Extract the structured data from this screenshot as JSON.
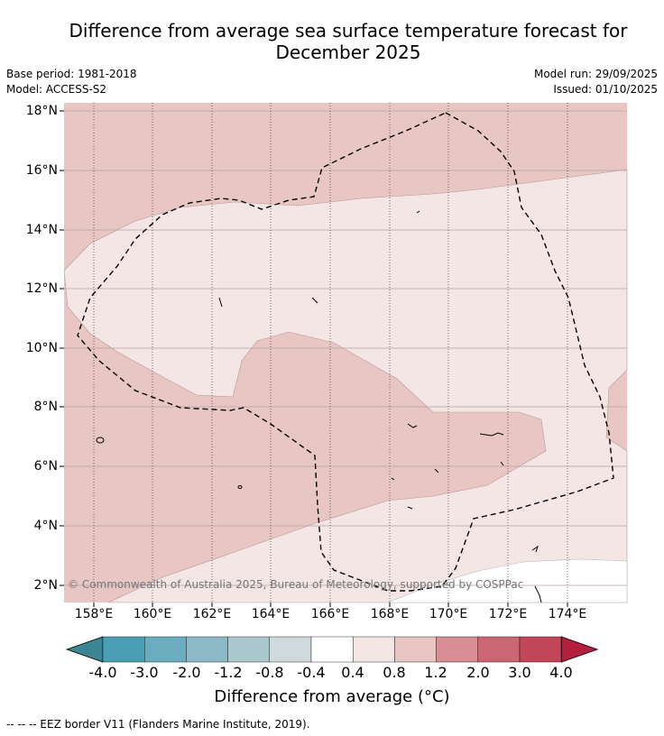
{
  "title_line1": "Difference from average sea surface temperature forecast for",
  "title_line2": "December 2025",
  "meta": {
    "base_period": "Base period: 1981-2018",
    "model": "Model: ACCESS-S2",
    "model_run": "Model run: 29/09/2025",
    "issued": "Issued: 01/10/2025"
  },
  "map": {
    "lat_labels": [
      "18°N",
      "16°N",
      "14°N",
      "12°N",
      "10°N",
      "8°N",
      "6°N",
      "4°N",
      "2°N"
    ],
    "lon_labels": [
      "158°E",
      "160°E",
      "162°E",
      "164°E",
      "166°E",
      "168°E",
      "170°E",
      "172°E",
      "174°E"
    ],
    "copyright": "© Commonwealth of Australia 2025, Bureau of Meteorology, supported by COSPPac"
  },
  "colorbar": {
    "ticks": [
      "-4.0",
      "-3.0",
      "-2.0",
      "-1.2",
      "-0.8",
      "-0.4",
      "0.4",
      "0.8",
      "1.2",
      "2.0",
      "3.0",
      "4.0"
    ],
    "colors": [
      "#4a9fb4",
      "#6aadbf",
      "#8bbac6",
      "#aac8cd",
      "#cfdadc",
      "#ffffff",
      "#f3e6e5",
      "#e7c6c3",
      "#d88e95",
      "#cb6673",
      "#c04658"
    ],
    "under_color": "#3b8595",
    "over_color": "#b51f3e",
    "label": "Difference from average (°C)"
  },
  "legend_note": "--  --  -- EEZ border V11 (Flanders Marine Institute, 2019)."
}
